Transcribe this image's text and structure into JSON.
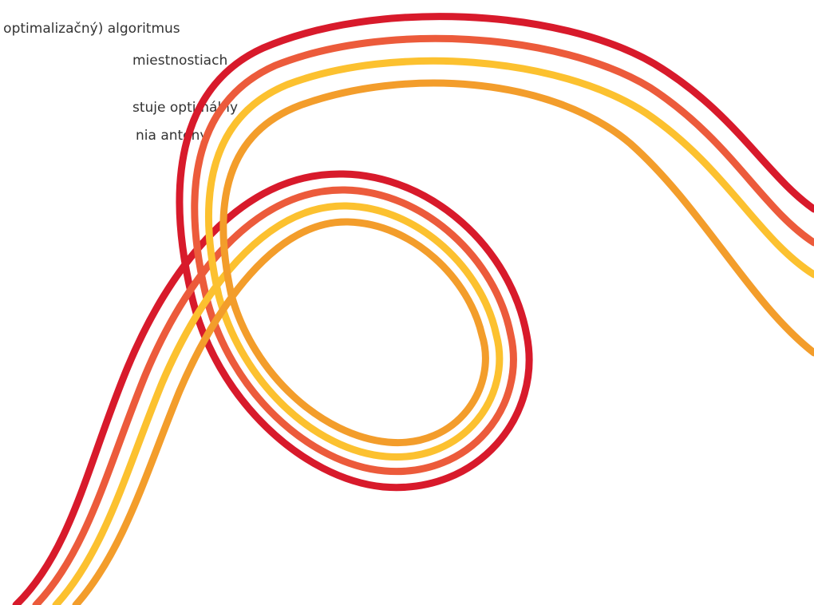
{
  "text": {
    "line1": "n optimalizačný) algoritmus",
    "line2": "miestnostiach",
    "line3": "stuje optimálny",
    "line4": "nia antény."
  },
  "colors": {
    "background": "#ffffff",
    "text": "#333333",
    "stroke_red": "#d81a2b",
    "stroke_orange_red": "#ec5b3b",
    "stroke_yellow": "#fcc12f",
    "stroke_orange": "#f39d2b"
  },
  "graphic": {
    "name": "decorative-swirl-lines",
    "stroke_order": [
      "stroke_red",
      "stroke_orange_red",
      "stroke_yellow",
      "stroke_orange"
    ]
  }
}
